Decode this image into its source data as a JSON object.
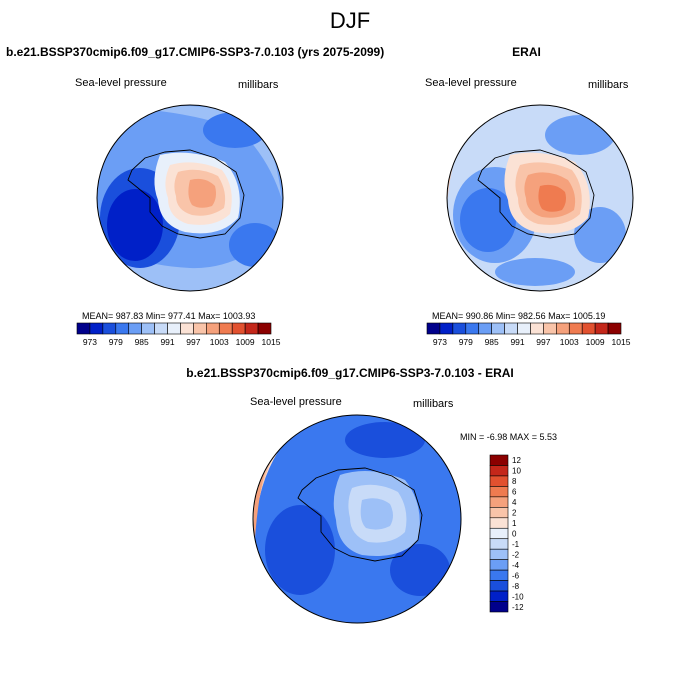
{
  "page": {
    "title": "DJF"
  },
  "colors": {
    "scale": [
      "#00008b",
      "#0020c8",
      "#1a4fdc",
      "#3a78ef",
      "#6b9ef5",
      "#9dc0f7",
      "#c8dbf8",
      "#e8f0fb",
      "#fbe2d5",
      "#f9c4a9",
      "#f5a17c",
      "#ef7b50",
      "#e2512f",
      "#c4271a",
      "#8b0000"
    ],
    "scale_intent": "blue-white-red diverging"
  },
  "chart_data": [
    {
      "type": "heatmap",
      "title": "b.e21.BSSP370cmip6.f09_g17.CMIP6-SSP3-7.0.103 (yrs 2075-2099)",
      "variable": "Sea-level pressure",
      "units": "millibars",
      "stats_text": "MEAN= 987.83  Min= 977.41  Max= 1003.93",
      "stats": {
        "mean": 987.83,
        "min": 977.41,
        "max": 1003.93
      },
      "colorbar_ticks": [
        "973",
        "979",
        "985",
        "991",
        "997",
        "1003",
        "1009",
        "1015"
      ],
      "projection": "south polar stereographic"
    },
    {
      "type": "heatmap",
      "title": "ERAI",
      "variable": "Sea-level pressure",
      "units": "millibars",
      "stats_text": "MEAN= 990.86  Min= 982.56  Max= 1005.19",
      "stats": {
        "mean": 990.86,
        "min": 982.56,
        "max": 1005.19
      },
      "colorbar_ticks": [
        "973",
        "979",
        "985",
        "991",
        "997",
        "1003",
        "1009",
        "1015"
      ],
      "projection": "south polar stereographic"
    },
    {
      "type": "heatmap",
      "title": "b.e21.BSSP370cmip6.f09_g17.CMIP6-SSP3-7.0.103 - ERAI",
      "variable": "Sea-level pressure",
      "units": "millibars",
      "stats_text": "MIN =  -6.98 MAX =   5.53",
      "stats": {
        "min": -6.98,
        "max": 5.53
      },
      "colorbar_ticks": [
        "12",
        "10",
        "8",
        "6",
        "4",
        "2",
        "1",
        "0",
        "-1",
        "-2",
        "-4",
        "-6",
        "-8",
        "-10",
        "-12"
      ],
      "projection": "south polar stereographic"
    }
  ]
}
